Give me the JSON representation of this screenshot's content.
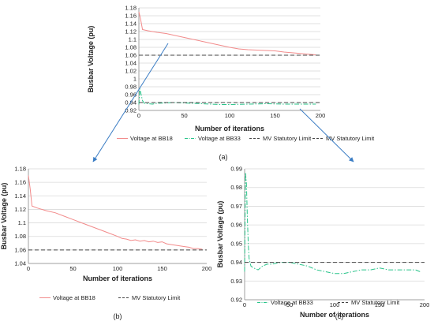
{
  "colors": {
    "bb18": "#f28b8b",
    "bb33": "#29c48a",
    "limit": "#444444",
    "arrow": "#3b7dc4",
    "grid": "#d9d9d9"
  },
  "chart_data": [
    {
      "id": "a",
      "type": "line",
      "caption": "(a)",
      "xlabel": "Number of iterations",
      "ylabel": "Busbar Voltage (pu)",
      "xlim": [
        0,
        200
      ],
      "ylim": [
        0.92,
        1.18
      ],
      "xticks": [
        0,
        50,
        100,
        150,
        200
      ],
      "yticks": [
        0.92,
        0.94,
        0.96,
        0.98,
        1.0,
        1.02,
        1.04,
        1.06,
        1.08,
        1.1,
        1.12,
        1.14,
        1.16,
        1.18
      ],
      "ytick_labels": [
        "0.92",
        "0.94",
        "0.96",
        "0.98",
        "1",
        "1.02",
        "1.04",
        "1.06",
        "1.08",
        "1.1",
        "1.12",
        "1.14",
        "1.16",
        "1.18"
      ],
      "grid": true,
      "legend": "bottom",
      "series": [
        {
          "name": "Voltage at BB18",
          "style": "solid",
          "color_key": "bb18",
          "x": [
            0,
            2,
            4,
            10,
            20,
            30,
            40,
            50,
            60,
            70,
            80,
            90,
            100,
            110,
            120,
            130,
            140,
            150,
            160,
            170,
            180,
            190,
            195
          ],
          "y": [
            1.17,
            1.15,
            1.125,
            1.122,
            1.118,
            1.115,
            1.11,
            1.105,
            1.1,
            1.095,
            1.09,
            1.085,
            1.08,
            1.076,
            1.074,
            1.073,
            1.072,
            1.071,
            1.068,
            1.066,
            1.064,
            1.062,
            1.061
          ]
        },
        {
          "name": "Voltage at BB33",
          "style": "dashdot",
          "color_key": "bb33",
          "x": [
            0,
            1,
            2,
            4,
            6,
            10,
            15,
            20,
            30,
            40,
            50,
            60,
            70,
            80,
            90,
            100,
            120,
            140,
            160,
            180,
            195
          ],
          "y": [
            0.935,
            0.975,
            0.965,
            0.945,
            0.938,
            0.937,
            0.936,
            0.938,
            0.939,
            0.94,
            0.939,
            0.938,
            0.937,
            0.936,
            0.935,
            0.935,
            0.936,
            0.937,
            0.936,
            0.936,
            0.936
          ]
        },
        {
          "name": "MV Statutory Limit",
          "style": "dashed",
          "color_key": "limit",
          "x": [
            0,
            200
          ],
          "y": [
            1.06,
            1.06
          ]
        },
        {
          "name": "MV Statutory Limit",
          "style": "dashed",
          "color_key": "limit",
          "x": [
            0,
            200
          ],
          "y": [
            0.94,
            0.94
          ]
        }
      ]
    },
    {
      "id": "b",
      "type": "line",
      "caption": "(b)",
      "xlabel": "Number of iterations",
      "ylabel": "Busbar Voltage (pu)",
      "xlim": [
        0,
        200
      ],
      "ylim": [
        1.04,
        1.18
      ],
      "xticks": [
        0,
        50,
        100,
        150,
        200
      ],
      "yticks": [
        1.04,
        1.06,
        1.08,
        1.1,
        1.12,
        1.14,
        1.16,
        1.18
      ],
      "ytick_labels": [
        "1.04",
        "1.06",
        "1.08",
        "1.1",
        "1.12",
        "1.14",
        "1.16",
        "1.18"
      ],
      "grid": true,
      "legend": "bottom",
      "series": [
        {
          "name": "Voltage at BB18",
          "style": "solid",
          "color_key": "bb18",
          "x": [
            0,
            2,
            4,
            10,
            20,
            30,
            40,
            50,
            60,
            70,
            80,
            90,
            100,
            105,
            110,
            115,
            120,
            125,
            130,
            135,
            140,
            145,
            150,
            155,
            160,
            165,
            170,
            175,
            180,
            185,
            190,
            195
          ],
          "y": [
            1.17,
            1.15,
            1.125,
            1.122,
            1.118,
            1.115,
            1.11,
            1.105,
            1.1,
            1.095,
            1.09,
            1.085,
            1.08,
            1.077,
            1.076,
            1.074,
            1.075,
            1.073,
            1.074,
            1.072,
            1.073,
            1.071,
            1.072,
            1.069,
            1.068,
            1.067,
            1.066,
            1.065,
            1.064,
            1.062,
            1.062,
            1.061
          ]
        },
        {
          "name": "MV Statutory Limit",
          "style": "dashed",
          "color_key": "limit",
          "x": [
            0,
            200
          ],
          "y": [
            1.06,
            1.06
          ]
        }
      ]
    },
    {
      "id": "c",
      "type": "line",
      "caption": "(c)",
      "xlabel": "Number of iterations",
      "ylabel": "Busbar Voltage (pu)",
      "xlim": [
        0,
        200
      ],
      "ylim": [
        0.92,
        0.99
      ],
      "xticks": [
        0,
        50,
        100,
        150,
        200
      ],
      "yticks": [
        0.92,
        0.93,
        0.94,
        0.95,
        0.96,
        0.97,
        0.98,
        0.99
      ],
      "ytick_labels": [
        "0.92",
        "0.93",
        "0.94",
        "0.95",
        "0.96",
        "0.97",
        "0.98",
        "0.99"
      ],
      "grid": true,
      "legend": "bottom",
      "series": [
        {
          "name": "Voltage at BB33",
          "style": "dashdot",
          "color_key": "bb33",
          "x": [
            0,
            1,
            2,
            3,
            4,
            5,
            7,
            10,
            15,
            20,
            25,
            30,
            40,
            50,
            60,
            70,
            80,
            90,
            100,
            110,
            120,
            130,
            140,
            150,
            160,
            170,
            180,
            190,
            195
          ],
          "y": [
            0.935,
            0.988,
            0.982,
            0.965,
            0.95,
            0.942,
            0.938,
            0.937,
            0.936,
            0.938,
            0.939,
            0.939,
            0.94,
            0.94,
            0.939,
            0.938,
            0.936,
            0.935,
            0.934,
            0.934,
            0.935,
            0.936,
            0.936,
            0.937,
            0.936,
            0.936,
            0.936,
            0.936,
            0.935
          ]
        },
        {
          "name": "MV Statutory Limit",
          "style": "dashed",
          "color_key": "limit",
          "x": [
            0,
            200
          ],
          "y": [
            0.94,
            0.94
          ]
        }
      ]
    }
  ]
}
